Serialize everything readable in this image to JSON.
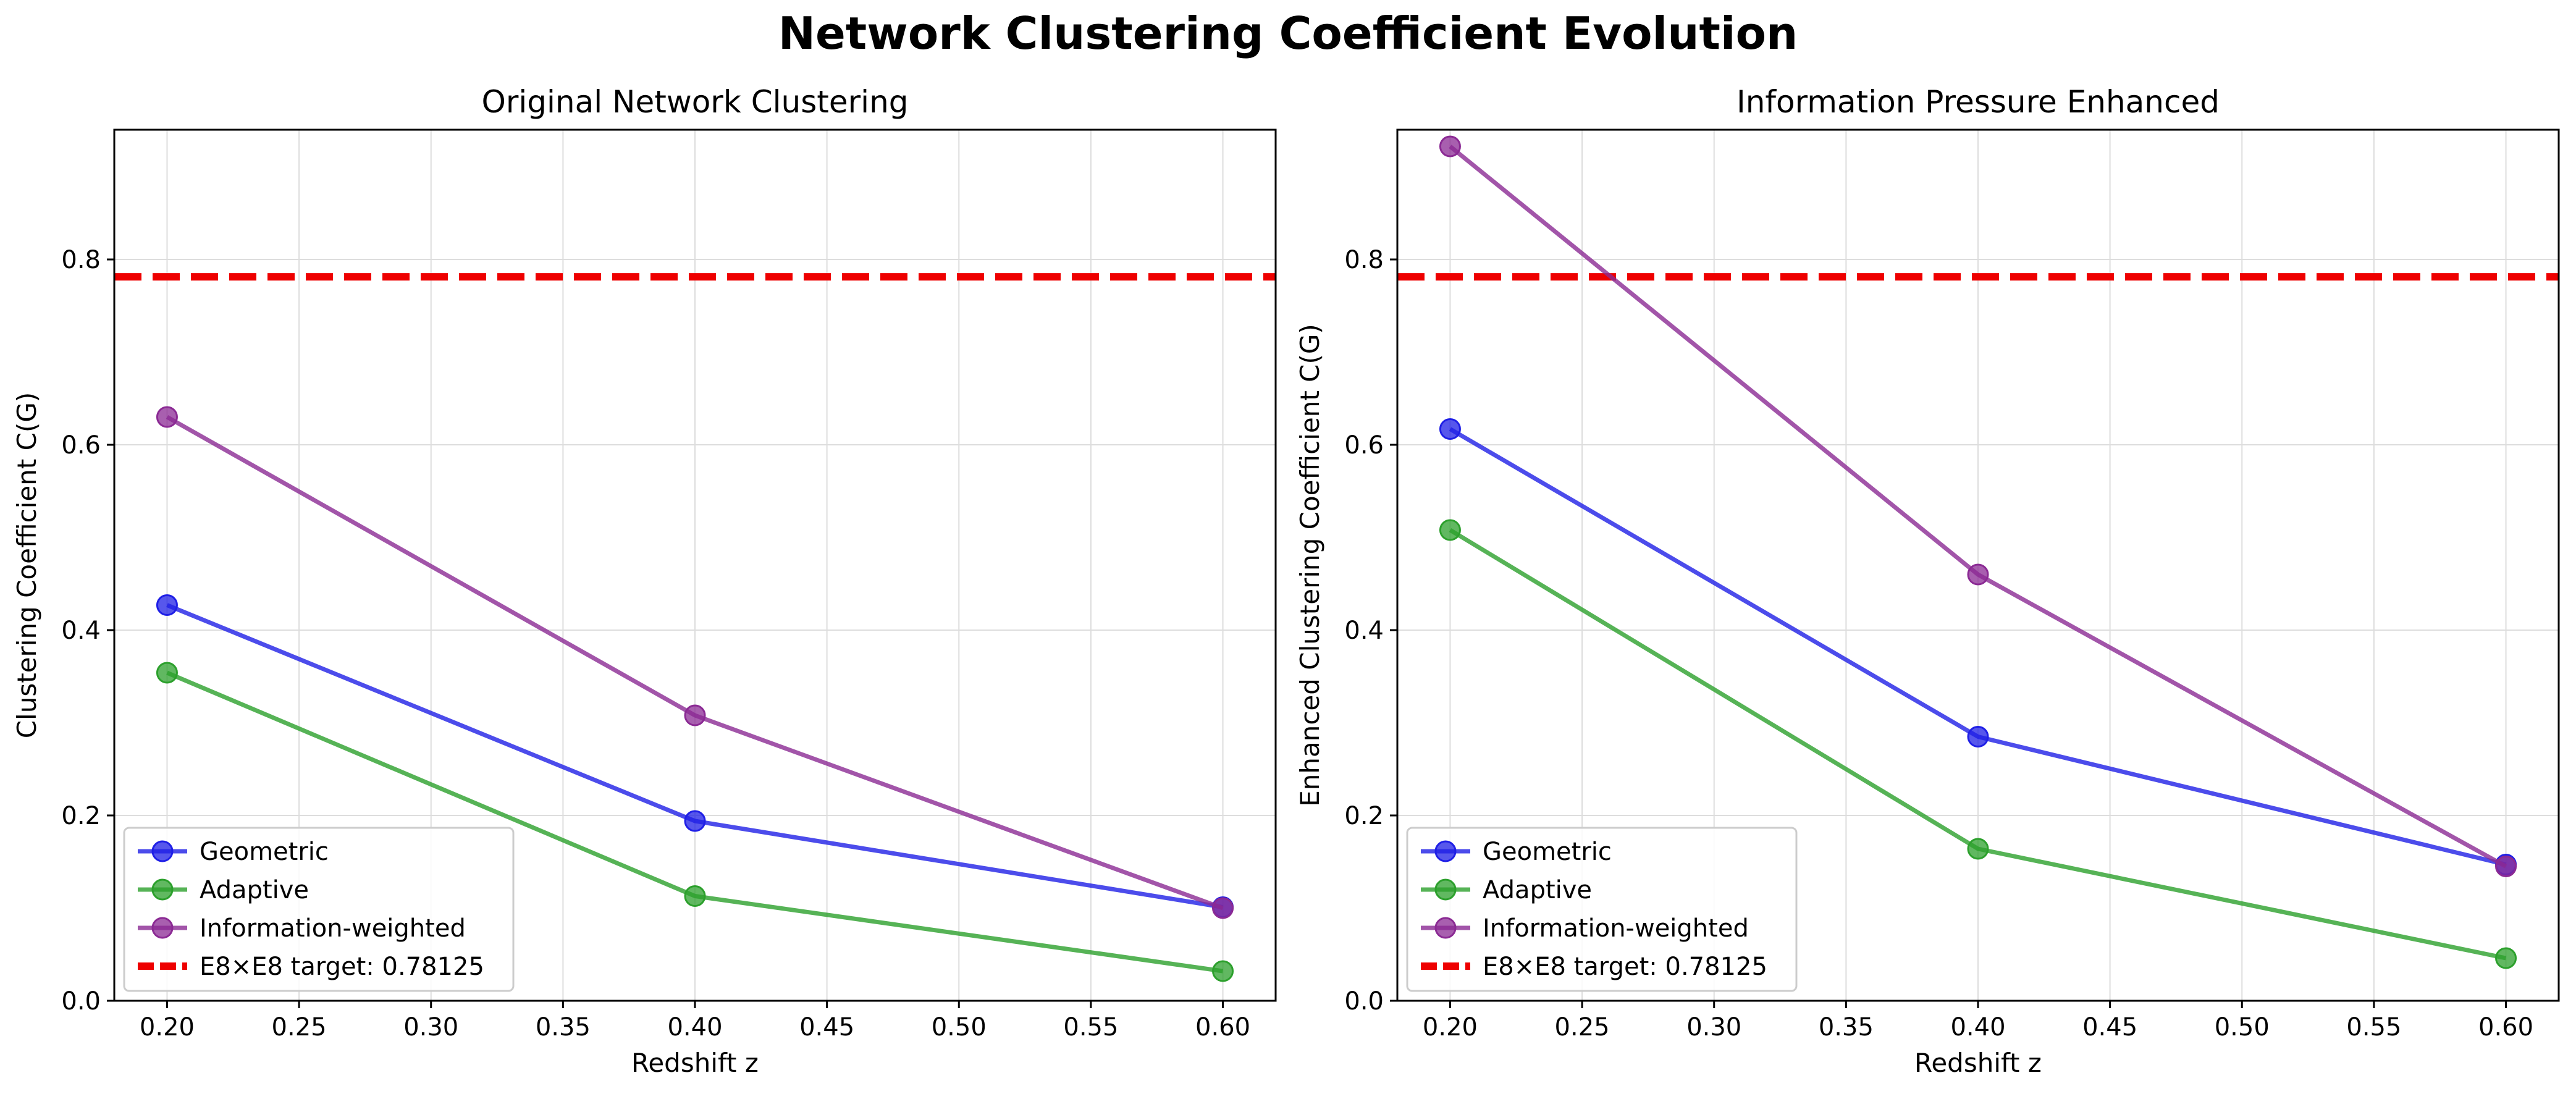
{
  "title": "Network Clustering Coefficient Evolution",
  "colors": {
    "Geometric": "#1f1fe6",
    "Adaptive": "#2ca02c",
    "Information-weighted": "#8b2a94",
    "target": "#ee0000",
    "grid": "#dddddd"
  },
  "chart_data": [
    {
      "type": "line",
      "title": "Original Network Clustering",
      "xlabel": "Redshift z",
      "ylabel": "Clustering Coefficient C(G)",
      "xlim": [
        0.18,
        0.62
      ],
      "ylim": [
        0,
        0.94
      ],
      "xticks": [
        "0.20",
        "0.25",
        "0.30",
        "0.35",
        "0.40",
        "0.45",
        "0.50",
        "0.55",
        "0.60"
      ],
      "yticks": [
        "0.0",
        "0.2",
        "0.4",
        "0.6",
        "0.8"
      ],
      "grid": true,
      "legend_position": "lower-left",
      "x": [
        0.2,
        0.4,
        0.6
      ],
      "series": [
        {
          "name": "Geometric",
          "values": [
            0.427,
            0.194,
            0.101
          ]
        },
        {
          "name": "Adaptive",
          "values": [
            0.354,
            0.113,
            0.032
          ]
        },
        {
          "name": "Information-weighted",
          "values": [
            0.63,
            0.308,
            0.1
          ]
        }
      ],
      "reference_line": {
        "name": "E8×E8 target: 0.78125",
        "value": 0.78125
      }
    },
    {
      "type": "line",
      "title": "Information Pressure Enhanced",
      "xlabel": "Redshift z",
      "ylabel": "Enhanced Clustering Coefficient C(G)",
      "xlim": [
        0.18,
        0.62
      ],
      "ylim": [
        0,
        0.94
      ],
      "xticks": [
        "0.20",
        "0.25",
        "0.30",
        "0.35",
        "0.40",
        "0.45",
        "0.50",
        "0.55",
        "0.60"
      ],
      "yticks": [
        "0.0",
        "0.2",
        "0.4",
        "0.6",
        "0.8"
      ],
      "grid": true,
      "legend_position": "lower-left",
      "x": [
        0.2,
        0.4,
        0.6
      ],
      "series": [
        {
          "name": "Geometric",
          "values": [
            0.617,
            0.285,
            0.147
          ]
        },
        {
          "name": "Adaptive",
          "values": [
            0.508,
            0.164,
            0.046
          ]
        },
        {
          "name": "Information-weighted",
          "values": [
            0.922,
            0.46,
            0.145
          ]
        }
      ],
      "reference_line": {
        "name": "E8×E8 target: 0.78125",
        "value": 0.78125
      }
    }
  ]
}
